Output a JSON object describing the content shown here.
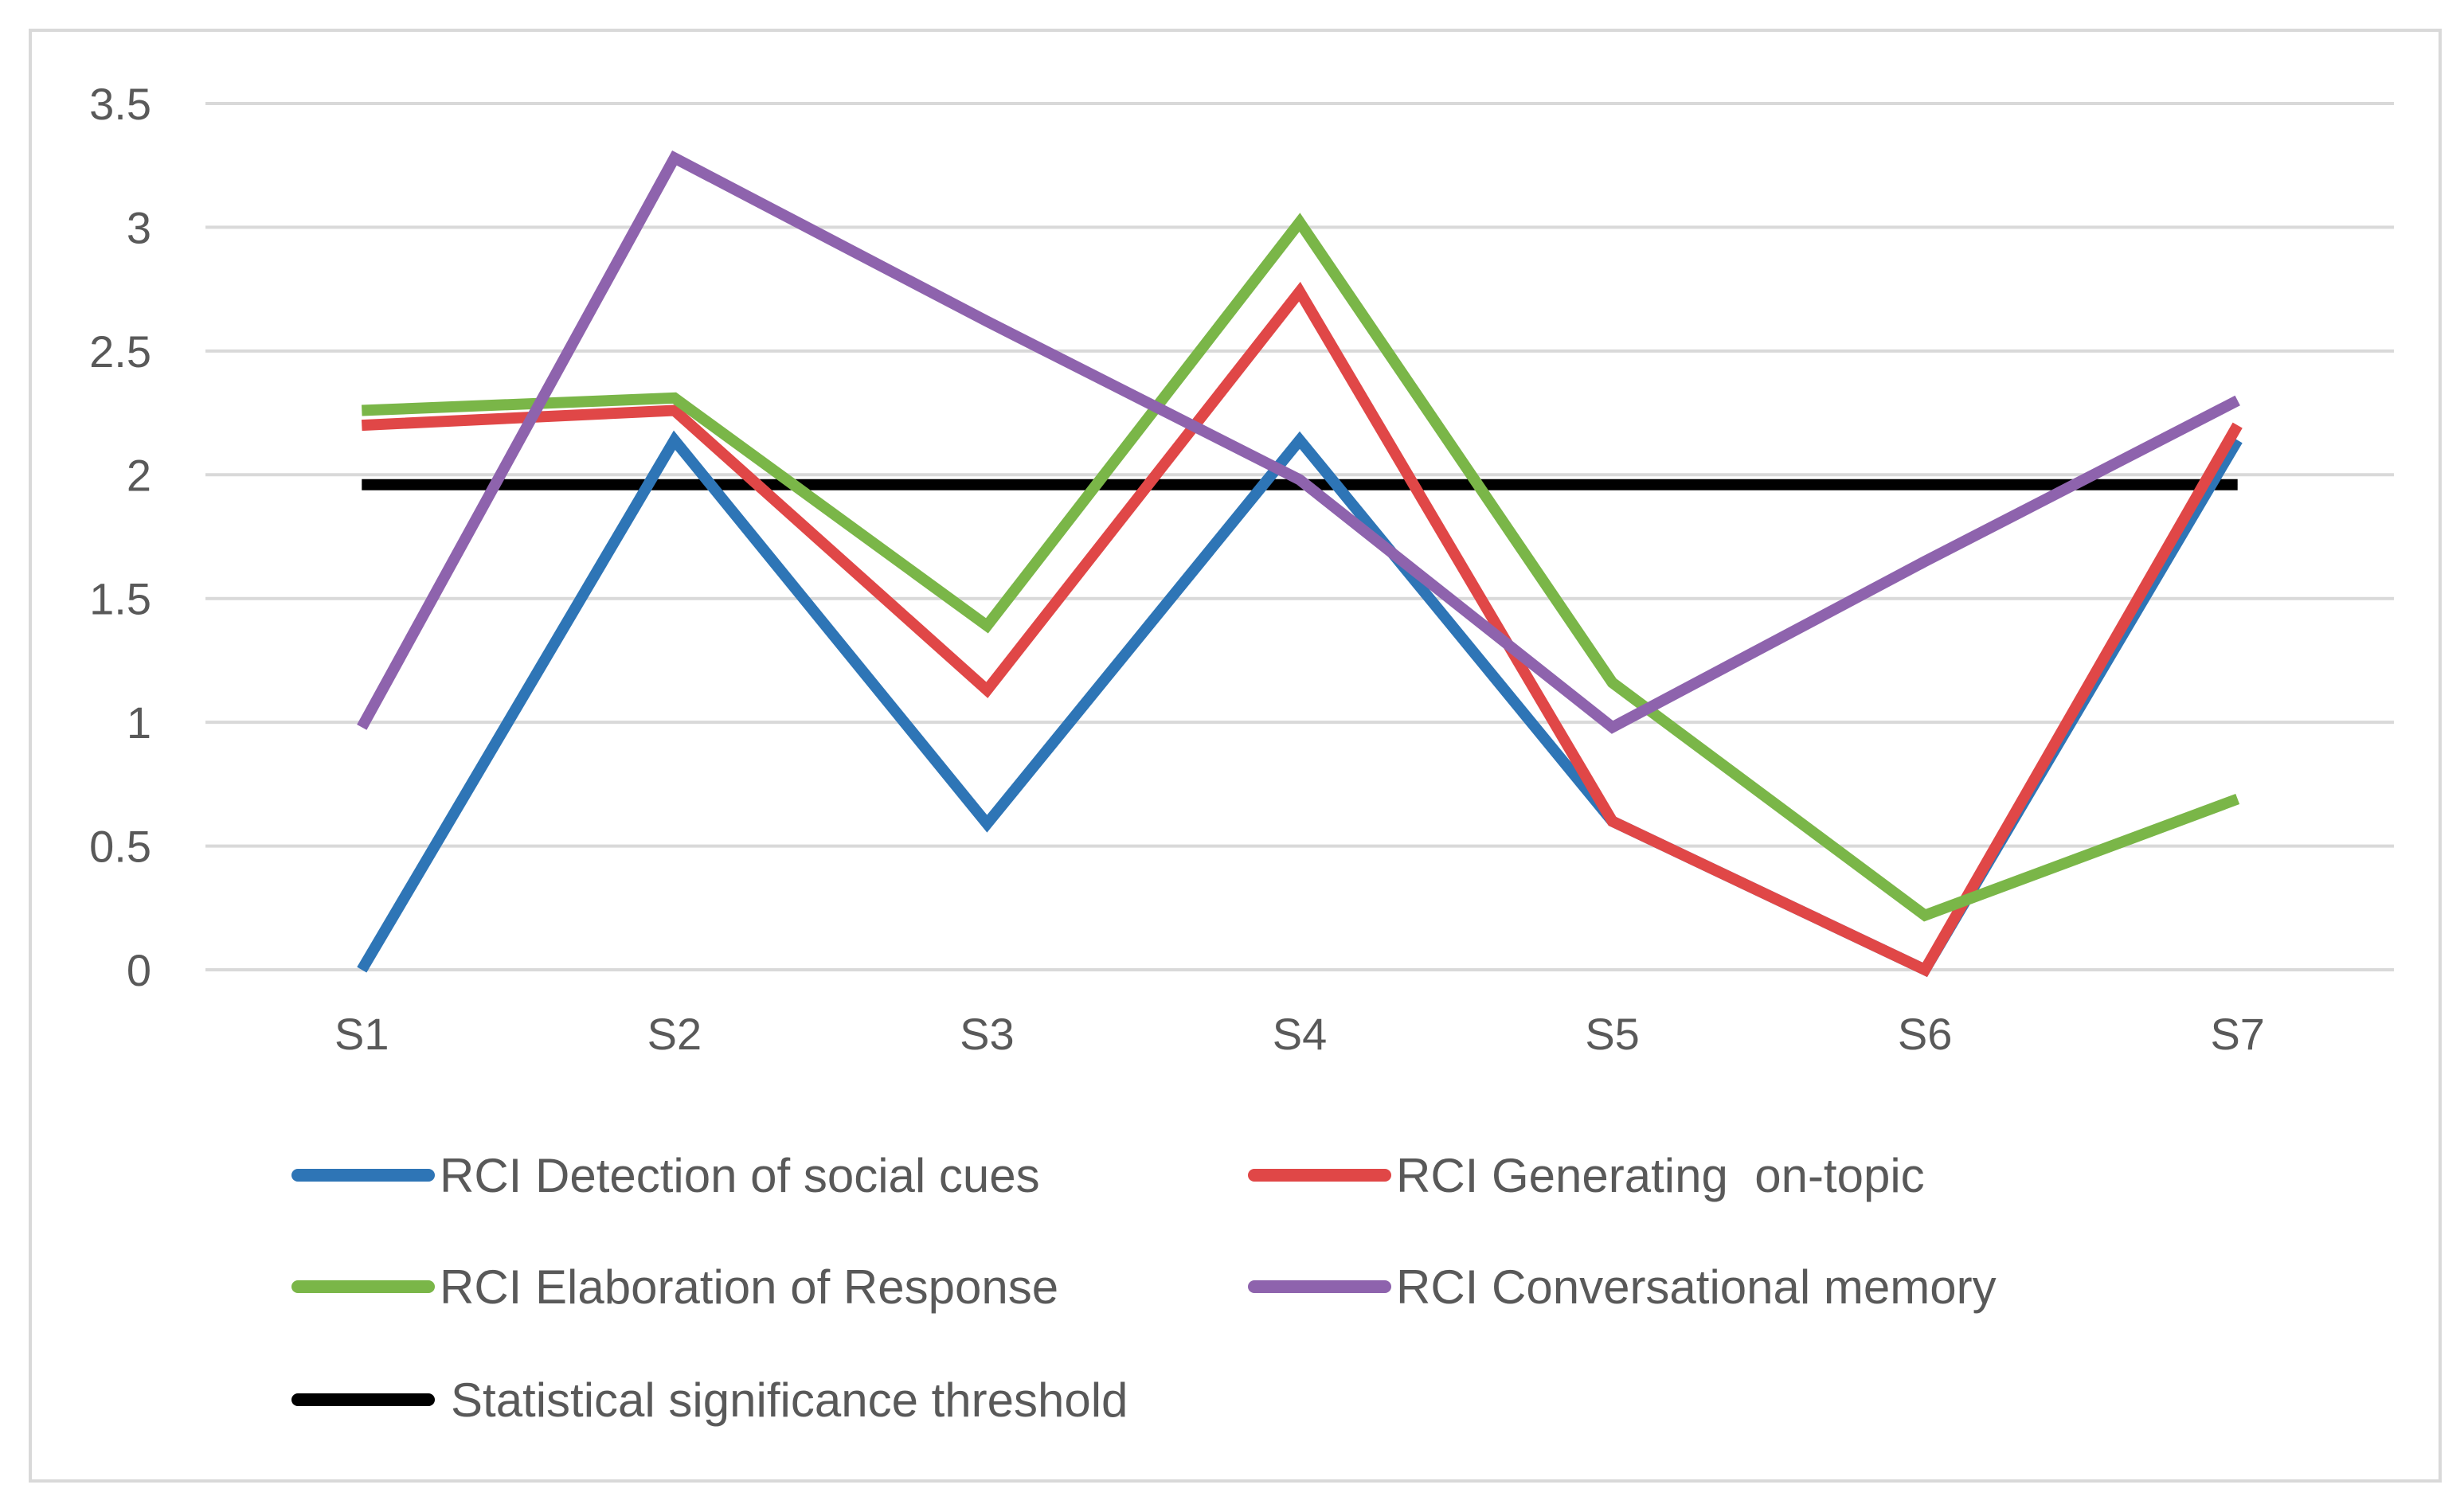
{
  "chart_data": {
    "type": "line",
    "title": "",
    "xlabel": "",
    "ylabel": "",
    "categories": [
      "S1",
      "S2",
      "S3",
      "S4",
      "S5",
      "S6",
      "S7"
    ],
    "ylim": [
      0,
      3.5
    ],
    "yticks": [
      "0",
      "0.5",
      "1",
      "1.5",
      "2",
      "2.5",
      "3",
      "3.5"
    ],
    "grid": true,
    "legend_position": "bottom",
    "series": [
      {
        "name": "RCI Detection of social cues",
        "color": "#2e75b6",
        "values": [
          0.0,
          2.14,
          0.59,
          2.14,
          0.6,
          0.0,
          2.14
        ]
      },
      {
        "name": "RCI Generating  on-topic",
        "color": "#e04747",
        "values": [
          2.2,
          2.26,
          1.13,
          2.74,
          0.6,
          0.0,
          2.2
        ]
      },
      {
        "name": "RCI Elaboration of Response",
        "color": "#7ab648",
        "values": [
          2.26,
          2.31,
          1.39,
          3.02,
          1.16,
          0.22,
          0.69
        ]
      },
      {
        "name": "RCI Conversational memory",
        "color": "#8e63ad",
        "values": [
          0.98,
          3.28,
          2.62,
          1.98,
          0.98,
          1.65,
          2.3
        ]
      },
      {
        "name": "Statistical significance threshold",
        "color": "#000000",
        "values": [
          1.96,
          1.96,
          1.96,
          1.96,
          1.96,
          1.96,
          1.96
        ]
      }
    ]
  }
}
